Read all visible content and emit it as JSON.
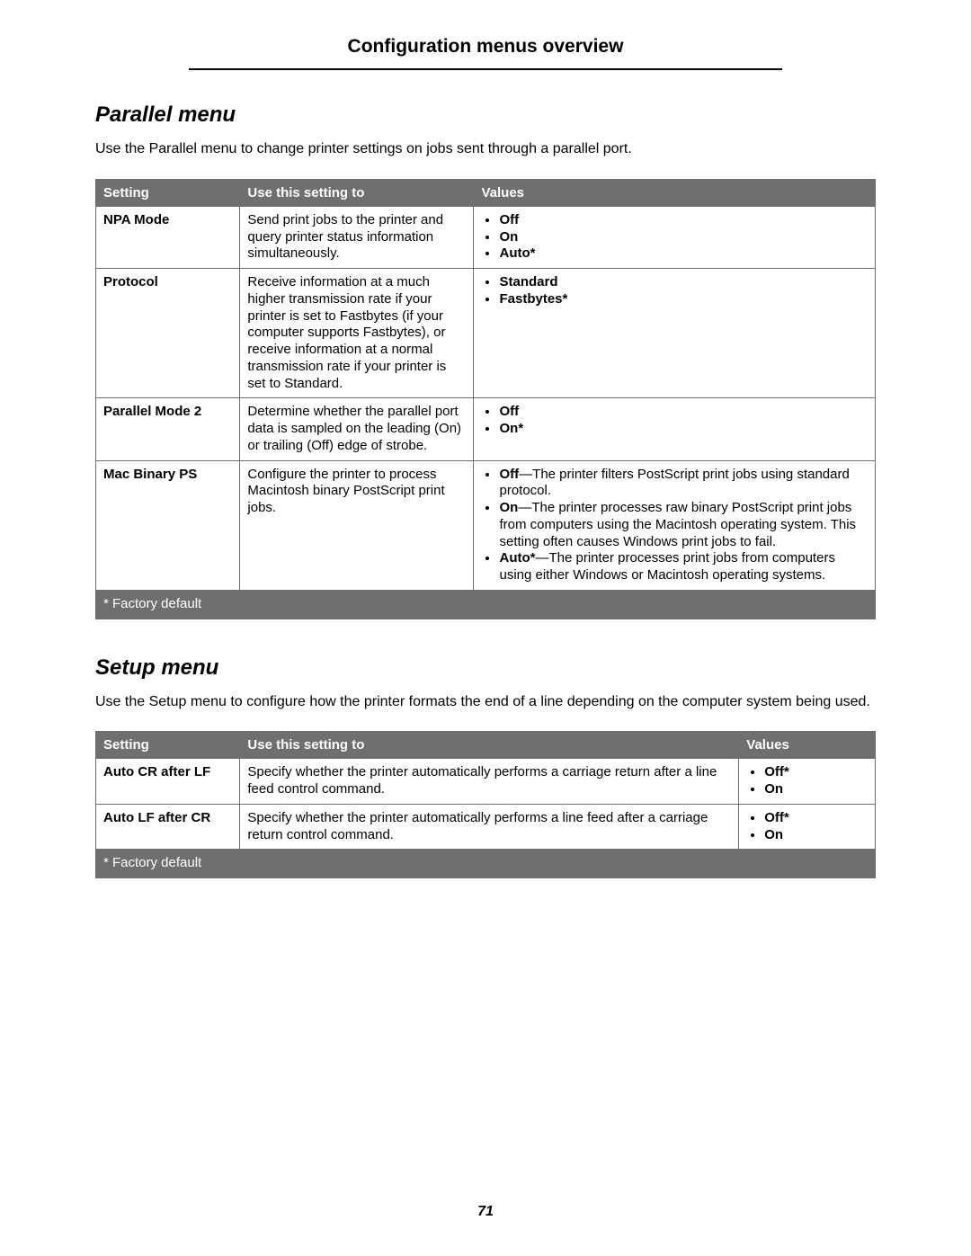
{
  "page_title": "Configuration menus overview",
  "page_number": "71",
  "colors": {
    "header_bg": "#6f6f6f",
    "header_text": "#ffffff",
    "body_text": "#000000",
    "border": "#6f6f6f",
    "background": "#ffffff"
  },
  "typography": {
    "base_font": "Arial, Helvetica, sans-serif",
    "page_header_size_pt": 16,
    "section_heading_size_pt": 18,
    "body_size_pt": 11,
    "section_heading_style": "bold italic"
  },
  "sections": [
    {
      "title": "Parallel menu",
      "intro": "Use the Parallel menu to change printer settings on jobs sent through a parallel port.",
      "table": {
        "headers": [
          "Setting",
          "Use this setting to",
          "Values"
        ],
        "col_widths_pct": [
          18.5,
          30,
          51.5
        ],
        "footer": "* Factory default",
        "rows": [
          {
            "setting": "NPA Mode",
            "desc": "Send print jobs to the printer and query printer status information simultaneously.",
            "values": [
              {
                "bold": "Off",
                "rest": ""
              },
              {
                "bold": "On",
                "rest": ""
              },
              {
                "bold": "Auto*",
                "rest": ""
              }
            ]
          },
          {
            "setting": "Protocol",
            "desc": "Receive information at a much higher transmission rate if your printer is set to Fastbytes (if your computer supports Fastbytes), or receive information at a normal transmission rate if your printer is set to Standard.",
            "values": [
              {
                "bold": "Standard",
                "rest": ""
              },
              {
                "bold": "Fastbytes*",
                "rest": ""
              }
            ]
          },
          {
            "setting": "Parallel Mode 2",
            "desc": "Determine whether the parallel port data is sampled on the leading (On) or trailing (Off) edge of strobe.",
            "values": [
              {
                "bold": "Off",
                "rest": ""
              },
              {
                "bold": "On*",
                "rest": ""
              }
            ]
          },
          {
            "setting": "Mac Binary PS",
            "desc": "Configure the printer to process Macintosh binary PostScript print jobs.",
            "values": [
              {
                "bold": "Off",
                "rest": "—The printer filters PostScript print jobs using standard protocol."
              },
              {
                "bold": "On",
                "rest": "—The printer processes raw binary PostScript print jobs from computers using the Macintosh operating system. This setting often causes Windows print jobs to fail."
              },
              {
                "bold": "Auto*",
                "rest": "—The printer processes print jobs from computers using either Windows or Macintosh operating systems."
              }
            ]
          }
        ]
      }
    },
    {
      "title": "Setup menu",
      "intro": "Use the Setup menu to configure how the printer formats the end of a line depending on the computer system being used.",
      "table": {
        "headers": [
          "Setting",
          "Use this setting to",
          "Values"
        ],
        "col_widths_pct": [
          18.5,
          64,
          17.5
        ],
        "footer": "* Factory default",
        "rows": [
          {
            "setting": "Auto CR after LF",
            "desc": "Specify whether the printer automatically performs a carriage return after a line feed control command.",
            "values": [
              {
                "bold": "Off*",
                "rest": ""
              },
              {
                "bold": "On",
                "rest": ""
              }
            ]
          },
          {
            "setting": "Auto LF after CR",
            "desc": "Specify whether the printer automatically performs a line feed after a carriage return control command.",
            "values": [
              {
                "bold": "Off*",
                "rest": ""
              },
              {
                "bold": "On",
                "rest": ""
              }
            ]
          }
        ]
      }
    }
  ]
}
